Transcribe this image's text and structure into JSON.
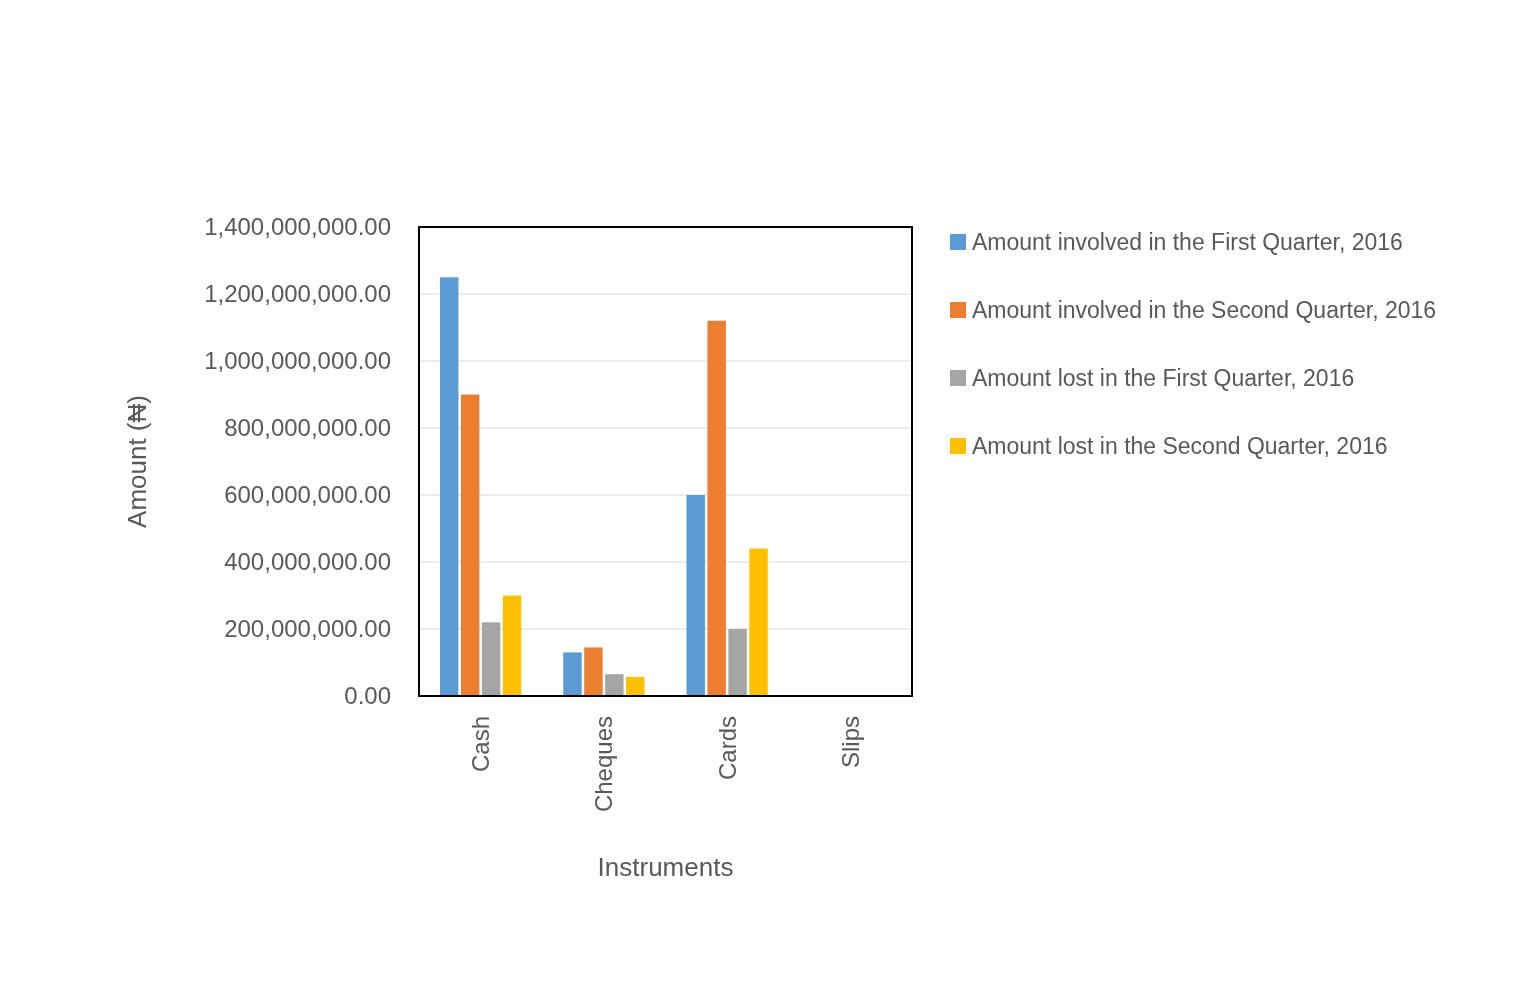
{
  "chart_data": {
    "type": "bar",
    "xlabel": "Instruments",
    "ylabel": "Amount (₦)",
    "categories": [
      "Cash",
      "Cheques",
      "Cards",
      "Slips"
    ],
    "series": [
      {
        "name": "Amount involved in the First Quarter, 2016",
        "color": "#5b9bd5",
        "values": [
          1250000000,
          130000000,
          600000000,
          0
        ]
      },
      {
        "name": "Amount involved in the Second Quarter, 2016",
        "color": "#ed7d31",
        "values": [
          900000000,
          145000000,
          1120000000,
          0
        ]
      },
      {
        "name": "Amount lost in the First Quarter, 2016",
        "color": "#a5a5a5",
        "values": [
          220000000,
          65000000,
          200000000,
          0
        ]
      },
      {
        "name": "Amount lost in the Second Quarter, 2016",
        "color": "#ffc000",
        "values": [
          300000000,
          57000000,
          440000000,
          0
        ]
      }
    ],
    "ylim": [
      0,
      1400000000
    ],
    "yticks": [
      {
        "value": 0,
        "label": "0.00"
      },
      {
        "value": 200000000,
        "label": "200,000,000.00"
      },
      {
        "value": 400000000,
        "label": "400,000,000.00"
      },
      {
        "value": 600000000,
        "label": "600,000,000.00"
      },
      {
        "value": 800000000,
        "label": "800,000,000.00"
      },
      {
        "value": 1000000000,
        "label": "1,000,000,000.00"
      },
      {
        "value": 1200000000,
        "label": "1,200,000,000.00"
      },
      {
        "value": 1400000000,
        "label": "1,400,000,000.00"
      }
    ],
    "grid": "y",
    "legend": "right"
  }
}
